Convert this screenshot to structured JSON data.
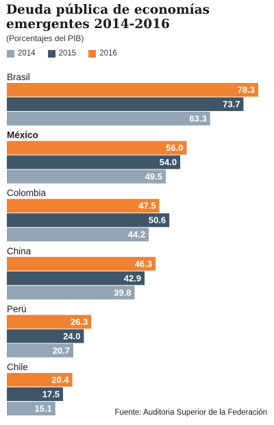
{
  "title": "Deuda pública de economías emergentes 2014-2016",
  "subtitle": "(Porcentajes del PIB)",
  "source": "Fuente: Auditoria Superior de la Federación",
  "colors": {
    "2014": "#94a5b3",
    "2015": "#3e5668",
    "2016": "#f08232"
  },
  "chart_data": {
    "type": "bar",
    "orientation": "horizontal",
    "categories": [
      "Brasil",
      "México",
      "Colombia",
      "China",
      "Perú",
      "Chile"
    ],
    "highlighted_category": "México",
    "series": [
      {
        "name": "2016",
        "values": [
          78.3,
          56.0,
          47.5,
          46.3,
          26.3,
          20.4
        ]
      },
      {
        "name": "2015",
        "values": [
          73.7,
          54.0,
          50.6,
          42.9,
          24.0,
          17.5
        ]
      },
      {
        "name": "2014",
        "values": [
          63.3,
          49.5,
          44.2,
          39.8,
          20.7,
          15.1
        ]
      }
    ],
    "legend": [
      "2014",
      "2015",
      "2016"
    ],
    "legend_position": "top-left",
    "xlim": [
      0,
      80
    ],
    "grid": false
  }
}
